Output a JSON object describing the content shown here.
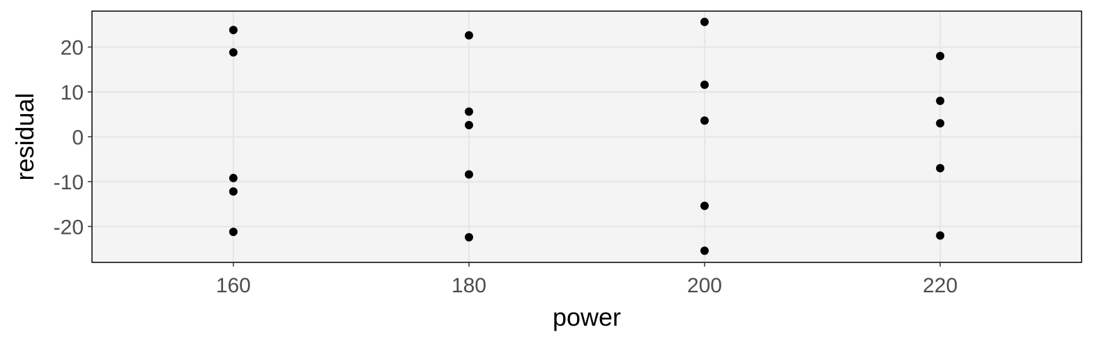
{
  "chart_data": {
    "type": "scatter",
    "title": "",
    "xlabel": "power",
    "ylabel": "residual",
    "xlim": [
      148,
      232
    ],
    "ylim": [
      -28,
      28
    ],
    "x_ticks": [
      160,
      180,
      200,
      220
    ],
    "x_tick_labels": [
      "160",
      "180",
      "200",
      "220"
    ],
    "y_ticks": [
      -20,
      -10,
      0,
      10,
      20
    ],
    "y_tick_labels": [
      "-20",
      "-10",
      "0",
      "10",
      "20"
    ],
    "grid": true,
    "legend": "none",
    "colors": {
      "panel": "#f4f4f4",
      "grid": "#e6e6e6",
      "point": "#000000",
      "border": "#000000"
    },
    "series": [
      {
        "points": [
          [
            160,
            23.8
          ],
          [
            160,
            18.8
          ],
          [
            160,
            -9.2
          ],
          [
            160,
            -12.2
          ],
          [
            160,
            -21.2
          ],
          [
            180,
            22.6
          ],
          [
            180,
            5.6
          ],
          [
            180,
            2.6
          ],
          [
            180,
            -8.4
          ],
          [
            180,
            -22.4
          ],
          [
            200,
            25.6
          ],
          [
            200,
            11.6
          ],
          [
            200,
            3.6
          ],
          [
            200,
            -15.4
          ],
          [
            200,
            -25.4
          ],
          [
            220,
            18.0
          ],
          [
            220,
            8.0
          ],
          [
            220,
            3.0
          ],
          [
            220,
            -7.0
          ],
          [
            220,
            -22.0
          ]
        ]
      }
    ]
  }
}
